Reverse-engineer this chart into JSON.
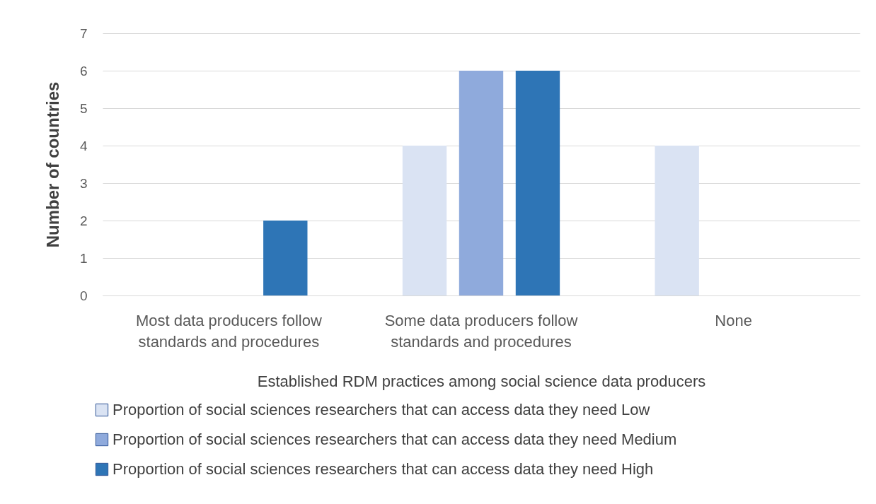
{
  "chart_data": {
    "type": "bar",
    "xlabel": "Established RDM practices among social science data producers",
    "ylabel": "Number of countries",
    "categories": [
      "Most data producers follow standards and procedures",
      "Some data producers follow standards and procedures",
      "None"
    ],
    "series": [
      {
        "name": "Proportion of social sciences researchers that can access data they need Low",
        "color": "#dae3f3",
        "values": [
          null,
          4,
          4
        ]
      },
      {
        "name": "Proportion of social sciences researchers that can access data they need Medium",
        "color": "#8faadc",
        "values": [
          null,
          6,
          null
        ]
      },
      {
        "name": "Proportion of social sciences researchers that can access data they need High",
        "color": "#2e75b6",
        "values": [
          2,
          6,
          null
        ]
      }
    ],
    "ylim": [
      0,
      7
    ],
    "yticks": [
      0,
      1,
      2,
      3,
      4,
      5,
      6,
      7
    ],
    "grid": "y",
    "legend": "bottom"
  }
}
